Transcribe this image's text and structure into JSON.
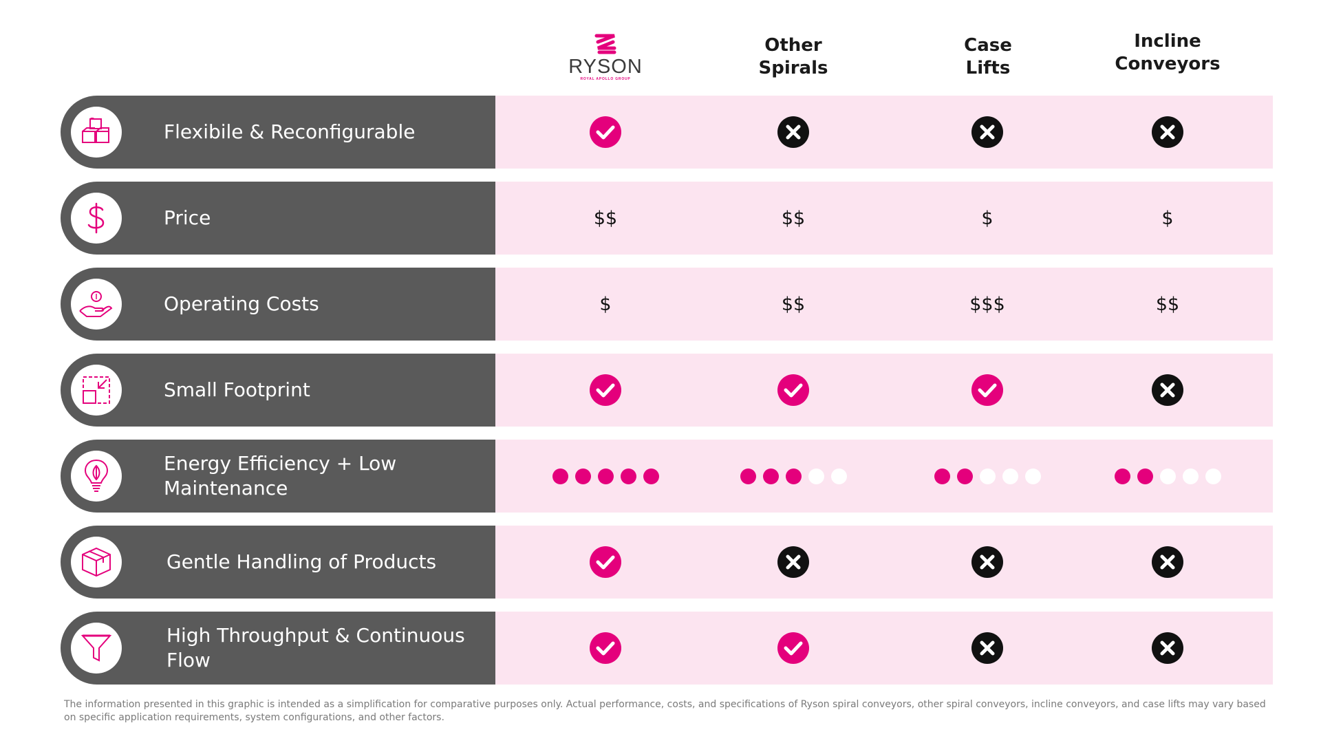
{
  "header": {
    "brand": {
      "name": "RYSON",
      "tagline": "ROYAL APOLLO GROUP",
      "color": "#e4007c"
    },
    "columns": [
      {
        "line1": "Other",
        "line2": "Spirals"
      },
      {
        "line1": "Case",
        "line2": "Lifts"
      },
      {
        "line1": "Incline",
        "line2": "Conveyors"
      }
    ]
  },
  "colors": {
    "accent": "#e4007c",
    "row_label_bg": "#5a5a5a",
    "row_value_bg": "#fce4f0",
    "cross": "#111111"
  },
  "rows": [
    {
      "icon": "cubes-icon",
      "label": "Flexibile & Reconfigurable",
      "cells": [
        {
          "type": "check"
        },
        {
          "type": "cross"
        },
        {
          "type": "cross"
        },
        {
          "type": "cross"
        }
      ]
    },
    {
      "icon": "dollar-icon",
      "label": "Price",
      "cells": [
        {
          "type": "text",
          "value": "$$"
        },
        {
          "type": "text",
          "value": "$$"
        },
        {
          "type": "text",
          "value": "$"
        },
        {
          "type": "text",
          "value": "$"
        }
      ]
    },
    {
      "icon": "hand-coin-icon",
      "label": "Operating Costs",
      "cells": [
        {
          "type": "text",
          "value": "$"
        },
        {
          "type": "text",
          "value": "$$"
        },
        {
          "type": "text",
          "value": "$$$"
        },
        {
          "type": "text",
          "value": "$$"
        }
      ]
    },
    {
      "icon": "compress-icon",
      "label": "Small Footprint",
      "cells": [
        {
          "type": "check"
        },
        {
          "type": "check"
        },
        {
          "type": "check"
        },
        {
          "type": "cross"
        }
      ]
    },
    {
      "icon": "lightbulb-leaf-icon",
      "label": "Energy Efficiency + Low Maintenance",
      "cells": [
        {
          "type": "rating",
          "value": 5,
          "max": 5
        },
        {
          "type": "rating",
          "value": 3,
          "max": 5
        },
        {
          "type": "rating",
          "value": 2,
          "max": 5
        },
        {
          "type": "rating",
          "value": 2,
          "max": 5
        }
      ]
    },
    {
      "icon": "box-icon",
      "label": "Gentle Handling of Products",
      "cells": [
        {
          "type": "check"
        },
        {
          "type": "cross"
        },
        {
          "type": "cross"
        },
        {
          "type": "cross"
        }
      ]
    },
    {
      "icon": "funnel-icon",
      "label": "High Throughput & Continuous Flow",
      "cells": [
        {
          "type": "check"
        },
        {
          "type": "check"
        },
        {
          "type": "cross"
        },
        {
          "type": "cross"
        }
      ]
    }
  ],
  "disclaimer": "The information presented in this graphic is intended as a simplification for comparative purposes only. Actual performance, costs, and specifications of Ryson spiral conveyors, other spiral conveyors, incline conveyors, and case lifts may vary based on specific application requirements, system configurations, and other factors."
}
